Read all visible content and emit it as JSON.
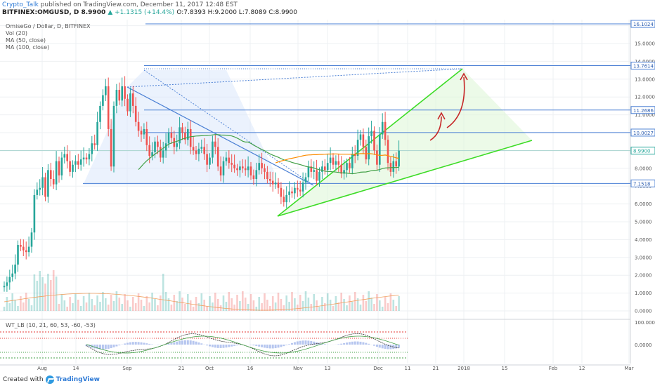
{
  "header": {
    "publisher": "Crypto_Talk",
    "published_text": "published on TradingView.com, December 11, 2017 12:48 EST",
    "symbol": "BITFINEX:OMGUSD, D",
    "last": "8.9900",
    "change": "▲ +1.1315 (+14.4%)",
    "ohlc": "O:7.8393 H:9.2000 L:7.8089 C:8.9900"
  },
  "legend": {
    "title": "OmiseGo / Dollar, D, BITFINEX",
    "vol": "Vol (20)",
    "ma50": "MA (50, close)",
    "ma100": "MA (100, close)",
    "oscillator": "WT_LB (10, 21, 60, 53, -60, -53)"
  },
  "footer": {
    "created_with": "Created with",
    "brand": "TradingView"
  },
  "colors": {
    "up": "#26a69a",
    "down": "#ef5350",
    "ma50": "#43a047",
    "ma100": "#fb8c00",
    "trendline": "#4a7fd4",
    "wedge": "#3ddc26",
    "arrow": "#c62828",
    "grid": "#eef0f3"
  },
  "chart_data": {
    "type": "candlestick",
    "title": "OmiseGo / Dollar, D, BITFINEX",
    "x_ticks": [
      "Aug",
      "14",
      "Sep",
      "21",
      "Oct",
      "16",
      "Nov",
      "13",
      "Dec",
      "11",
      "21",
      "2018",
      "15",
      "Feb",
      "12",
      "Mar"
    ],
    "y_ticks": [
      "16.0000",
      "15.0000",
      "14.0000",
      "13.0000",
      "12.0000",
      "11.0000",
      "10.0000",
      "9.0000",
      "8.0000",
      "7.0000",
      "6.0000",
      "5.0000",
      "4.0000",
      "3.0000",
      "2.0000",
      "1.0000",
      "0.0000"
    ],
    "ylim": [
      -0.4,
      16.6
    ],
    "price_labels": [
      "16.1024",
      "13.7614",
      "11.2686",
      "10.0027",
      "8.9900",
      "7.1518"
    ],
    "horizontal_levels": [
      16.1024,
      13.7614,
      11.2686,
      10.0027,
      8.99,
      7.1518
    ],
    "closes": [
      1.4,
      1.6,
      1.9,
      2.1,
      2.6,
      3.7,
      3.6,
      3.4,
      3.3,
      3.6,
      4.4,
      6.5,
      6.8,
      6.9,
      7.5,
      6.4,
      7.9,
      7.4,
      7.1,
      8.4,
      7.6,
      8.6,
      8.8,
      8.4,
      7.8,
      8.2,
      8.4,
      8.2,
      8.5,
      8.6,
      8.5,
      8.8,
      9.4,
      9.3,
      10.6,
      11.5,
      12.1,
      12.6,
      10.2,
      8.1,
      11.5,
      12.4,
      11.8,
      12.6,
      11.9,
      11.2,
      12.2,
      11.5,
      10.6,
      10.1,
      9.9,
      10.2,
      9.3,
      8.7,
      8.9,
      9.5,
      9.2,
      8.6,
      9.0,
      9.4,
      10.0,
      9.7,
      9.2,
      9.4,
      10.3,
      10.0,
      9.6,
      10.2,
      9.2,
      9.0,
      8.8,
      9.1,
      9.2,
      8.8,
      8.2,
      8.6,
      9.5,
      9.2,
      8.1,
      7.6,
      8.4,
      8.6,
      8.3,
      8.2,
      8.0,
      7.9,
      8.1,
      8.0,
      7.9,
      8.1,
      7.6,
      7.4,
      7.9,
      8.3,
      8.0,
      7.8,
      7.4,
      7.3,
      7.1,
      7.2,
      6.9,
      6.4,
      6.1,
      6.5,
      6.7,
      6.6,
      6.9,
      6.8,
      6.7,
      7.2,
      7.5,
      8.1,
      7.8,
      7.9,
      7.3,
      7.8,
      8.1,
      7.9,
      8.3,
      8.6,
      8.2,
      8.4,
      8.2,
      7.7,
      7.9,
      8.3,
      8.0,
      8.8,
      8.7,
      9.6,
      9.9,
      9.2,
      8.5,
      9.8,
      10.1,
      9.0,
      8.2,
      9.9,
      10.6,
      9.6,
      8.3,
      7.8,
      8.4,
      8.1,
      8.99
    ],
    "volume_note": "Vol (20) histogram, values not labeled",
    "oscillator_ticks": [
      "100.0000",
      "0.0000"
    ]
  }
}
